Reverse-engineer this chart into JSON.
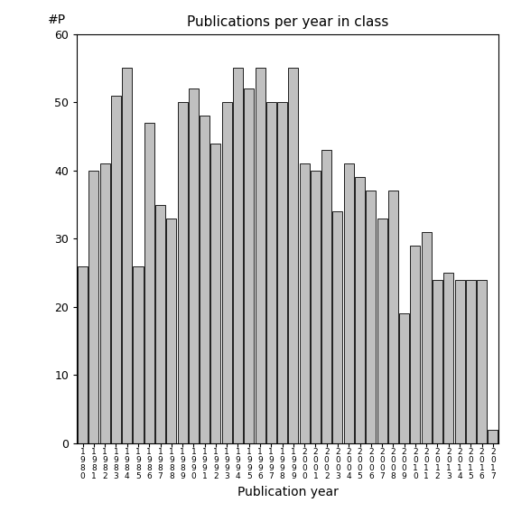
{
  "title": "Publications per year in class",
  "xlabel": "Publication year",
  "ylabel": "#P",
  "years": [
    "1980",
    "1981",
    "1982",
    "1983",
    "1984",
    "1985",
    "1986",
    "1987",
    "1988",
    "1989",
    "1990",
    "1991",
    "1992",
    "1993",
    "1994",
    "1995",
    "1996",
    "1997",
    "1998",
    "1999",
    "2000",
    "2001",
    "2002",
    "2003",
    "2004",
    "2005",
    "2006",
    "2007",
    "2008",
    "2009",
    "2010",
    "2011",
    "2012",
    "2013",
    "2014",
    "2015",
    "2016",
    "2017"
  ],
  "values": [
    26,
    40,
    41,
    51,
    55,
    26,
    47,
    35,
    33,
    50,
    52,
    48,
    44,
    50,
    55,
    52,
    55,
    50,
    50,
    55,
    41,
    40,
    43,
    34,
    41,
    39,
    37,
    33,
    37,
    19,
    29,
    31,
    24,
    25,
    24,
    24,
    24,
    2
  ],
  "bar_color": "#c0c0c0",
  "bar_edge_color": "#000000",
  "ylim": [
    0,
    60
  ],
  "yticks": [
    0,
    10,
    20,
    30,
    40,
    50,
    60
  ],
  "background_color": "#ffffff",
  "title_fontsize": 11,
  "axis_fontsize": 9,
  "label_fontsize": 10
}
